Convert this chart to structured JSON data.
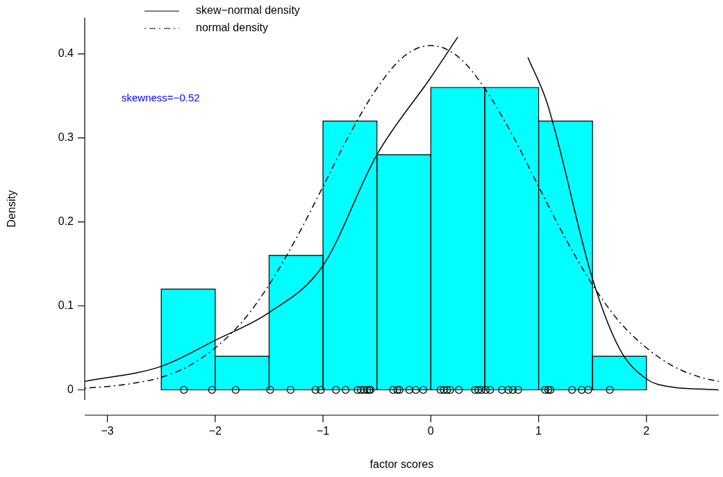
{
  "chart_data": {
    "type": "histogram",
    "xlabel": "factor scores",
    "ylabel": "Density",
    "bins": [
      -2.5,
      -2,
      -1.5,
      -1,
      -0.5,
      0,
      0.5,
      1,
      1.5,
      2
    ],
    "values": [
      0.12,
      0.04,
      0.16,
      0.32,
      0.28,
      0.36,
      0.36,
      0.32,
      0.04
    ],
    "color": "#00ffff",
    "xlim": [
      -3.21,
      2.67
    ],
    "xticks": [
      -3,
      -2,
      -1,
      0,
      1,
      2
    ],
    "ylim": [
      -0.012,
      0.443
    ],
    "yticks": [
      0,
      0.1,
      0.2,
      0.3,
      0.4
    ],
    "legend": "top left",
    "annotations": [
      "skewness=−0.52"
    ],
    "series": [
      {
        "type": "line",
        "name": "skew−normal density",
        "color": "#000000",
        "line_style": "solid",
        "x": [
          -3.21,
          -2.5,
          -2,
          -1.5,
          -1,
          -0.5,
          0,
          0.25,
          0.44,
          0.74,
          0.9,
          1.08,
          1.5,
          1.75,
          2,
          2.25,
          2.5,
          2.67
        ],
        "values": [
          0.01,
          0.028,
          0.059,
          0.092,
          0.148,
          0.28,
          0.372,
          0.42,
          null,
          null,
          0.396,
          0.341,
          0.132,
          0.049,
          0.013,
          0.003,
          0.001,
          0
        ]
      },
      {
        "type": "line",
        "name": "normal density",
        "color": "#000000",
        "line_style": "dashed",
        "x": [
          -3.21,
          -3,
          -2.75,
          -2.5,
          -2.25,
          -2,
          -1.75,
          -1.5,
          -1.25,
          -1,
          -0.75,
          -0.5,
          -0.25,
          0,
          0.25,
          0.5,
          0.75,
          1,
          1.25,
          1.5,
          1.75,
          2,
          2.25,
          2.5,
          2.67
        ],
        "values": [
          0.002,
          0.004,
          0.008,
          0.015,
          0.028,
          0.05,
          0.081,
          0.125,
          0.18,
          0.242,
          0.305,
          0.359,
          0.397,
          0.41,
          0.397,
          0.359,
          0.305,
          0.242,
          0.18,
          0.125,
          0.081,
          0.05,
          0.028,
          0.015,
          0.01
        ]
      },
      {
        "type": "scatter",
        "marker": "circle",
        "color": "#000000",
        "x": [
          -2.29,
          -2.03,
          -1.81,
          -1.49,
          -1.3,
          -1.07,
          -1.02,
          -0.88,
          -0.79,
          -0.68,
          -0.65,
          -0.62,
          -0.59,
          -0.57,
          -0.56,
          -0.35,
          -0.31,
          -0.29,
          -0.2,
          -0.14,
          -0.07,
          0.09,
          0.12,
          0.15,
          0.18,
          0.26,
          0.41,
          0.44,
          0.47,
          0.51,
          0.55,
          0.66,
          0.72,
          0.76,
          0.81,
          1.06,
          1.09,
          1.11,
          1.31,
          1.4,
          1.46,
          1.66
        ],
        "values": [
          0,
          0,
          0,
          0,
          0,
          0,
          0,
          0,
          0,
          0,
          0,
          0,
          0,
          0,
          0,
          0,
          0,
          0,
          0,
          0,
          0,
          0,
          0,
          0,
          0,
          0,
          0,
          0,
          0,
          0,
          0,
          0,
          0,
          0,
          0,
          0,
          0,
          0,
          0,
          0,
          0,
          0
        ]
      }
    ]
  }
}
